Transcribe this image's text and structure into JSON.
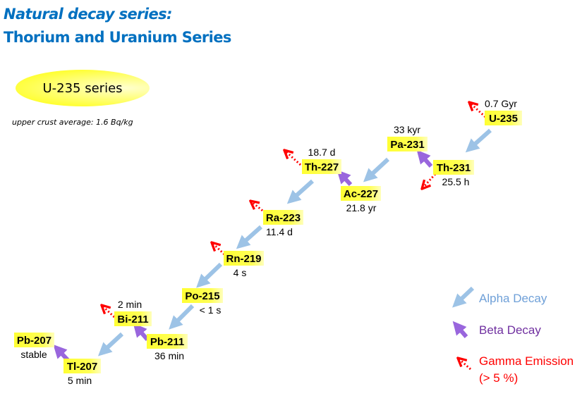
{
  "title": {
    "line1": "Natural decay series:",
    "line2": "Thorium and Uranium Series"
  },
  "series_label": "U-235 series",
  "crust_note": "upper crust average: 1.6 Bq/kg",
  "colors": {
    "title": "#0070c0",
    "alpha": "#9dc3e6",
    "beta": "#9966dd",
    "gamma": "#ff0000",
    "label_fill": "#ffff33"
  },
  "nuclides": [
    {
      "name": "U-235",
      "half_life": "0.7 Gyr"
    },
    {
      "name": "Th-231",
      "half_life": "25.5 h"
    },
    {
      "name": "Pa-231",
      "half_life": "33 kyr"
    },
    {
      "name": "Ac-227",
      "half_life": "21.8 yr"
    },
    {
      "name": "Th-227",
      "half_life": "18.7 d"
    },
    {
      "name": "Ra-223",
      "half_life": "11.4 d"
    },
    {
      "name": "Rn-219",
      "half_life": "4 s"
    },
    {
      "name": "Po-215",
      "half_life": "< 1 s"
    },
    {
      "name": "Pb-211",
      "half_life": "36 min"
    },
    {
      "name": "Bi-211",
      "half_life": "2 min"
    },
    {
      "name": "Tl-207",
      "half_life": "5 min"
    },
    {
      "name": "Pb-207",
      "half_life": "stable"
    }
  ],
  "decays": [
    {
      "from": "U-235",
      "to": "Th-231",
      "type": "alpha"
    },
    {
      "from": "Th-231",
      "to": "Pa-231",
      "type": "beta"
    },
    {
      "from": "Pa-231",
      "to": "Ac-227",
      "type": "alpha"
    },
    {
      "from": "Ac-227",
      "to": "Th-227",
      "type": "beta"
    },
    {
      "from": "Th-227",
      "to": "Ra-223",
      "type": "alpha"
    },
    {
      "from": "Ra-223",
      "to": "Rn-219",
      "type": "alpha"
    },
    {
      "from": "Rn-219",
      "to": "Po-215",
      "type": "alpha"
    },
    {
      "from": "Po-215",
      "to": "Pb-211",
      "type": "alpha"
    },
    {
      "from": "Pb-211",
      "to": "Bi-211",
      "type": "beta"
    },
    {
      "from": "Bi-211",
      "to": "Tl-207",
      "type": "alpha"
    },
    {
      "from": "Tl-207",
      "to": "Pb-207",
      "type": "beta"
    }
  ],
  "gamma_emitters": [
    "U-235",
    "Th-231",
    "Th-227",
    "Ra-223",
    "Rn-219",
    "Bi-211"
  ],
  "legend": {
    "alpha": "Alpha Decay",
    "beta": "Beta Decay",
    "gamma": "Gamma Emission",
    "gamma_note": "(> 5 %)"
  }
}
